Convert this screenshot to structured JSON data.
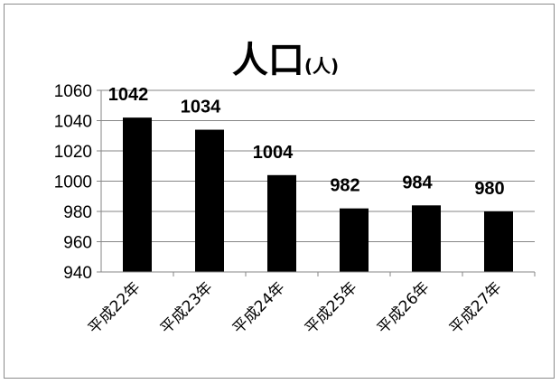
{
  "chart_data": {
    "type": "bar",
    "title": "人口",
    "title_unit": "(人)",
    "categories": [
      "平成22年",
      "平成23年",
      "平成24年",
      "平成25年",
      "平成26年",
      "平成27年"
    ],
    "values": [
      1042,
      1034,
      1004,
      982,
      984,
      980
    ],
    "ylim": [
      940,
      1060
    ],
    "yticks": [
      940,
      960,
      980,
      1000,
      1020,
      1040,
      1060
    ],
    "grid": true,
    "legend": "none",
    "bar_color": "#000000",
    "grid_color": "#868686"
  }
}
